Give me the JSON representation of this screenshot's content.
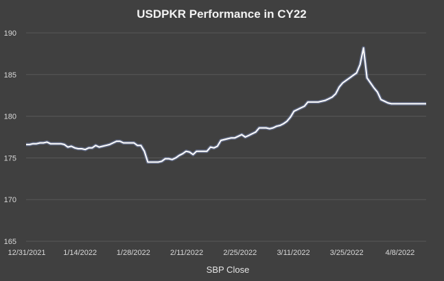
{
  "chart_data": {
    "type": "line",
    "title": "USDPKR Performance in CY22",
    "xlabel": "SBP Close",
    "ylabel": "",
    "ylim": [
      165,
      190
    ],
    "yticks": [
      165,
      170,
      175,
      180,
      185,
      190
    ],
    "xticks": [
      "12/31/2021",
      "1/14/2022",
      "1/28/2022",
      "2/11/2022",
      "2/25/2022",
      "3/11/2022",
      "3/25/2022",
      "4/8/2022"
    ],
    "grid": true,
    "legend": "none",
    "colors": {
      "background": "#404040",
      "line": "#ffffff",
      "glow": "#9ab4ff",
      "grid": "#595959"
    },
    "series": [
      {
        "x": [
          0,
          1,
          2,
          3,
          4,
          5,
          6,
          7,
          8,
          9,
          10,
          11,
          12,
          13,
          14,
          15,
          16,
          17,
          18,
          19,
          20,
          21,
          22,
          23,
          24,
          25,
          26,
          27,
          28,
          29,
          30,
          31,
          32,
          33,
          34,
          35,
          36,
          37,
          38,
          39,
          40,
          41,
          42,
          43,
          44,
          45,
          46,
          47,
          48,
          49,
          50,
          51,
          52,
          53,
          54,
          55,
          56,
          57,
          58,
          59,
          60,
          61,
          62,
          63,
          64,
          65,
          66,
          67,
          68,
          69,
          70,
          71,
          72,
          73,
          74,
          75,
          76,
          77,
          78,
          79,
          80,
          81,
          82,
          83,
          84,
          85,
          86,
          87,
          88,
          89,
          90,
          91,
          92,
          93,
          94,
          95,
          96,
          97,
          98,
          99,
          100,
          101,
          102,
          103,
          104,
          105,
          106,
          107,
          108,
          109,
          110,
          111,
          112,
          113,
          114,
          115
        ],
        "values": [
          176.6,
          176.6,
          176.7,
          176.7,
          176.8,
          176.8,
          176.9,
          176.7,
          176.7,
          176.7,
          176.7,
          176.6,
          176.3,
          176.4,
          176.2,
          176.1,
          176.1,
          176.0,
          176.2,
          176.2,
          176.5,
          176.3,
          176.4,
          176.5,
          176.6,
          176.8,
          177.0,
          177.0,
          176.8,
          176.8,
          176.8,
          176.8,
          176.5,
          176.5,
          175.8,
          174.5,
          174.5,
          174.5,
          174.5,
          174.6,
          174.9,
          174.9,
          174.8,
          175.0,
          175.3,
          175.5,
          175.8,
          175.7,
          175.4,
          175.8,
          175.8,
          175.8,
          175.8,
          176.3,
          176.2,
          176.4,
          177.1,
          177.2,
          177.3,
          177.4,
          177.4,
          177.6,
          177.8,
          177.5,
          177.7,
          177.9,
          178.1,
          178.6,
          178.6,
          178.6,
          178.5,
          178.6,
          178.8,
          178.9,
          179.1,
          179.4,
          179.9,
          180.6,
          180.8,
          181.0,
          181.2,
          181.7,
          181.7,
          181.7,
          181.7,
          181.8,
          181.9,
          182.1,
          182.3,
          182.7,
          183.5,
          184.0,
          184.3,
          184.6,
          184.9,
          185.2,
          186.2,
          188.2,
          184.6,
          184.0,
          183.4,
          182.9,
          182.0,
          181.8,
          181.6,
          181.5,
          181.5,
          181.5,
          181.5,
          181.5,
          181.5,
          181.5,
          181.5,
          181.5,
          181.5,
          181.5
        ]
      }
    ]
  }
}
